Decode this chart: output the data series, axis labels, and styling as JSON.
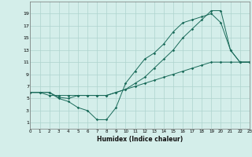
{
  "xlabel": "Humidex (Indice chaleur)",
  "bg_color": "#d4eeea",
  "grid_color": "#aed4ce",
  "line_color": "#1a6b5a",
  "line1_x": [
    0,
    1,
    2,
    3,
    4,
    5,
    6,
    7,
    8,
    9,
    10,
    11,
    12,
    13,
    14,
    15,
    16,
    17,
    18,
    19,
    20,
    21,
    22,
    23
  ],
  "line1_y": [
    6,
    6,
    6,
    5,
    4.5,
    3.5,
    3,
    1.5,
    1.5,
    3.5,
    7.5,
    9.5,
    11.5,
    12.5,
    14,
    16,
    17.5,
    18,
    18.5,
    19,
    17.5,
    13,
    11,
    11
  ],
  "line2_x": [
    0,
    1,
    2,
    3,
    4,
    5,
    6,
    7,
    8,
    9,
    10,
    11,
    12,
    13,
    14,
    15,
    16,
    17,
    18,
    19,
    20,
    21,
    22,
    23
  ],
  "line2_y": [
    6,
    6,
    5.5,
    5.5,
    5.5,
    5.5,
    5.5,
    5.5,
    5.5,
    6,
    6.5,
    7,
    7.5,
    8,
    8.5,
    9,
    9.5,
    10,
    10.5,
    11,
    11,
    11,
    11,
    11
  ],
  "line3_x": [
    0,
    2,
    3,
    4,
    5,
    6,
    7,
    8,
    9,
    10,
    11,
    12,
    13,
    14,
    15,
    16,
    17,
    18,
    19,
    20,
    21,
    22,
    23
  ],
  "line3_y": [
    6,
    6,
    5.2,
    5,
    5.5,
    5.5,
    5.5,
    5.5,
    6,
    6.5,
    7.5,
    8.5,
    10,
    11.5,
    13,
    15,
    16.5,
    18,
    19.5,
    19.5,
    13,
    11,
    11
  ],
  "xlim": [
    0,
    23
  ],
  "ylim": [
    0,
    21
  ],
  "xticks": [
    0,
    1,
    2,
    3,
    4,
    5,
    6,
    7,
    8,
    9,
    10,
    11,
    12,
    13,
    14,
    15,
    16,
    17,
    18,
    19,
    20,
    21,
    22,
    23
  ],
  "yticks": [
    1,
    3,
    5,
    7,
    9,
    11,
    13,
    15,
    17,
    19
  ]
}
